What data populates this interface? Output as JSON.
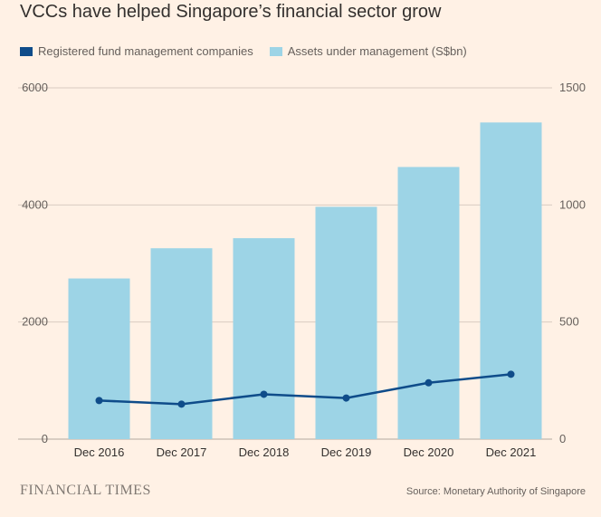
{
  "title": "VCCs have helped Singapore’s financial sector grow",
  "legend": {
    "line_label": "Registered fund management companies",
    "bar_label": "Assets under management (S$bn)"
  },
  "colors": {
    "background": "#FFF1E5",
    "bar": "#9DD4E6",
    "line": "#0F4C8A",
    "grid": "#D9CCC1",
    "text": "#33302E"
  },
  "chart_data": {
    "type": "bar",
    "categories": [
      "Dec 2016",
      "Dec 2017",
      "Dec 2018",
      "Dec 2019",
      "Dec 2020",
      "Dec 2021"
    ],
    "series": [
      {
        "name": "Assets under management (S$bn)",
        "type": "bar",
        "axis": "right",
        "values": [
          686,
          815,
          858,
          992,
          1162,
          1352
        ]
      },
      {
        "name": "Registered fund management companies",
        "type": "line",
        "axis": "left",
        "values": [
          659,
          598,
          766,
          702,
          962,
          1108
        ]
      }
    ],
    "yleft": {
      "ylim": [
        0,
        6000
      ],
      "ticks": [
        "6000",
        "4000",
        "2000",
        "0"
      ]
    },
    "yright": {
      "ylim": [
        0,
        1500
      ],
      "ticks": [
        "1500",
        "1000",
        "500",
        "0"
      ]
    },
    "grid": true,
    "legend_position": "top-left"
  },
  "footer": {
    "brand": "FINANCIAL TIMES",
    "source": "Source: Monetary Authority of Singapore"
  }
}
